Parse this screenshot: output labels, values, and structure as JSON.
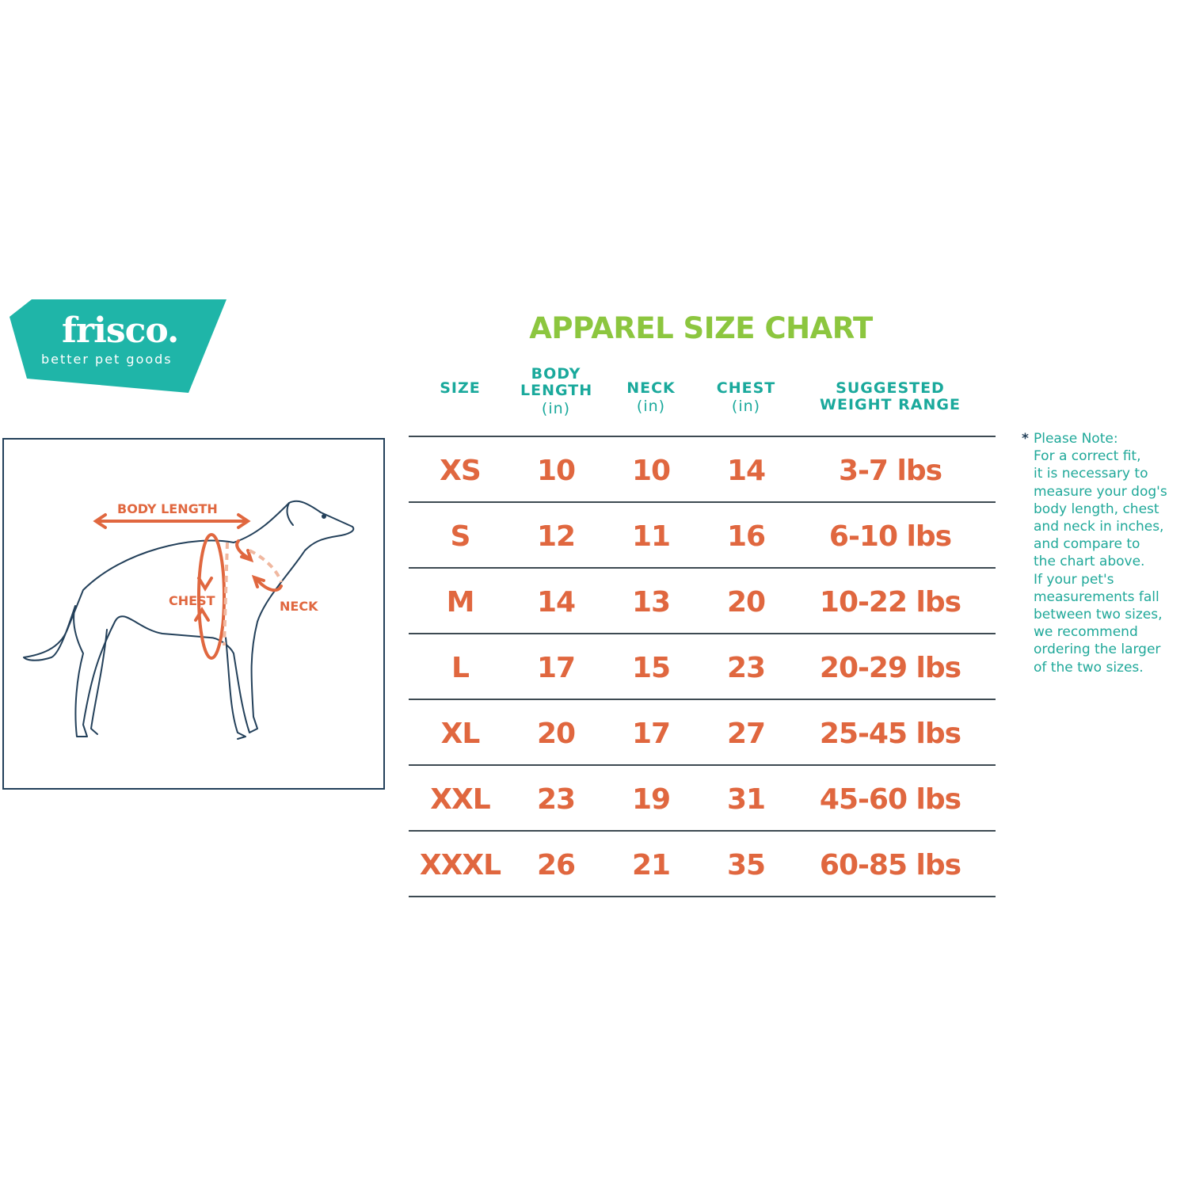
{
  "brand": {
    "name": "frisco.",
    "tagline": "better pet goods",
    "color": "#1fb5a8"
  },
  "diagram": {
    "labels": {
      "body_length": "BODY LENGTH",
      "chest": "CHEST",
      "neck": "NECK"
    },
    "accent": "#e0673f",
    "outline": "#23405a"
  },
  "title": "APPAREL SIZE CHART",
  "colors": {
    "title": "#8cc63f",
    "header": "#1aa99c",
    "values": "#e0673f"
  },
  "table": {
    "headers": [
      {
        "label": "SIZE",
        "unit": ""
      },
      {
        "label": "BODY LENGTH",
        "unit": "(in)"
      },
      {
        "label": "NECK",
        "unit": "(in)"
      },
      {
        "label": "CHEST",
        "unit": "(in)"
      },
      {
        "label": "SUGGESTED WEIGHT RANGE",
        "unit": ""
      }
    ],
    "rows": [
      [
        "XS",
        "10",
        "10",
        "14",
        "3-7 lbs"
      ],
      [
        "S",
        "12",
        "11",
        "16",
        "6-10 lbs"
      ],
      [
        "M",
        "14",
        "13",
        "20",
        "10-22 lbs"
      ],
      [
        "L",
        "17",
        "15",
        "23",
        "20-29 lbs"
      ],
      [
        "XL",
        "20",
        "17",
        "27",
        "25-45 lbs"
      ],
      [
        "XXL",
        "23",
        "19",
        "31",
        "45-60 lbs"
      ],
      [
        "XXXL",
        "26",
        "21",
        "35",
        "60-85 lbs"
      ]
    ]
  },
  "note": {
    "star": "*",
    "lines": [
      "Please Note:",
      "For a correct fit,",
      "it is necessary to",
      "measure your dog's",
      "body length, chest",
      "and neck in inches,",
      "and compare to",
      "the chart above.",
      "If your pet's",
      "measurements fall",
      "between two sizes,",
      "we recommend",
      "ordering the larger",
      "of the two sizes."
    ]
  }
}
